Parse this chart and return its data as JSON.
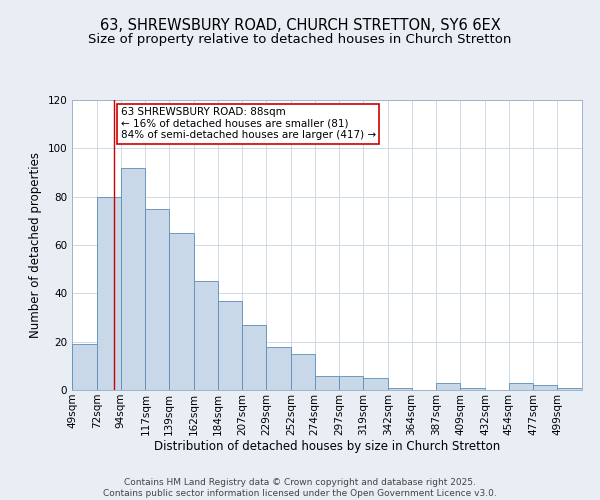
{
  "title_line1": "63, SHREWSBURY ROAD, CHURCH STRETTON, SY6 6EX",
  "title_line2": "Size of property relative to detached houses in Church Stretton",
  "xlabel": "Distribution of detached houses by size in Church Stretton",
  "ylabel": "Number of detached properties",
  "categories": [
    "49sqm",
    "72sqm",
    "94sqm",
    "117sqm",
    "139sqm",
    "162sqm",
    "184sqm",
    "207sqm",
    "229sqm",
    "252sqm",
    "274sqm",
    "297sqm",
    "319sqm",
    "342sqm",
    "364sqm",
    "387sqm",
    "409sqm",
    "432sqm",
    "454sqm",
    "477sqm",
    "499sqm"
  ],
  "values": [
    19,
    80,
    92,
    75,
    65,
    45,
    37,
    27,
    18,
    15,
    6,
    6,
    5,
    1,
    0,
    3,
    1,
    0,
    3,
    2,
    1
  ],
  "bar_color": "#c8d8e8",
  "bar_edge_color": "#5b8db8",
  "red_line_x": 88,
  "annotation_text": "63 SHREWSBURY ROAD: 88sqm\n← 16% of detached houses are smaller (81)\n84% of semi-detached houses are larger (417) →",
  "annotation_box_color": "#ffffff",
  "annotation_edge_color": "#cc0000",
  "red_line_color": "#cc0000",
  "ylim": [
    0,
    120
  ],
  "yticks": [
    0,
    20,
    40,
    60,
    80,
    100,
    120
  ],
  "bin_edges": [
    49,
    72,
    94,
    117,
    139,
    162,
    184,
    207,
    229,
    252,
    274,
    297,
    319,
    342,
    364,
    387,
    409,
    432,
    454,
    477,
    499,
    522
  ],
  "footer_text": "Contains HM Land Registry data © Crown copyright and database right 2025.\nContains public sector information licensed under the Open Government Licence v3.0.",
  "background_color": "#e8eef4",
  "plot_background_color": "#ffffff",
  "grid_color": "#c8d4e0",
  "title_fontsize": 10.5,
  "subtitle_fontsize": 9.5,
  "axis_label_fontsize": 8.5,
  "tick_fontsize": 7.5,
  "annotation_fontsize": 7.5,
  "footer_fontsize": 6.5
}
